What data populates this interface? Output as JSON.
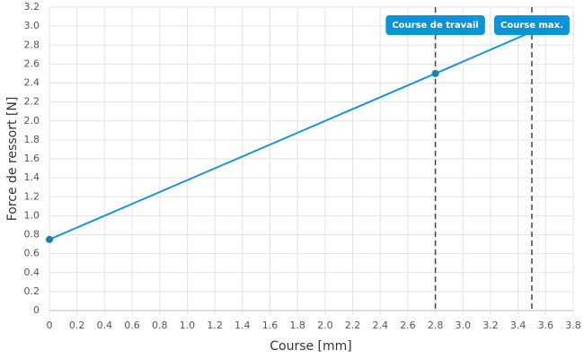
{
  "chart_data": {
    "type": "line",
    "x_label": "Course [mm]",
    "y_label": "Force de ressort [N]",
    "x": [
      0,
      2.8,
      3.5
    ],
    "series": [
      {
        "name": "Force de ressort",
        "color": "#1a95d3",
        "marker_color": "#1a7fb8",
        "markers": [
          true,
          true,
          false
        ],
        "values": [
          0.75,
          2.5,
          2.94
        ]
      }
    ],
    "xlim": [
      0,
      3.8
    ],
    "xticks": [
      0,
      0.2,
      0.4,
      0.6,
      0.8,
      {
        "value": 1,
        "label": "1.0"
      },
      1.2,
      1.4,
      1.6,
      1.8,
      {
        "value": 2,
        "label": "2.0"
      },
      2.2,
      2.4,
      2.6,
      2.8,
      {
        "value": 3,
        "label": "3.0"
      },
      3.2,
      3.4,
      3.6,
      3.8
    ],
    "ylim": [
      0,
      3.2
    ],
    "yticks": [
      0,
      0.2,
      0.4,
      0.6,
      0.8,
      {
        "value": 1,
        "label": "1.0"
      },
      1.2,
      1.4,
      1.6,
      1.8,
      {
        "value": 2,
        "label": "2.0"
      },
      2.2,
      2.4,
      2.6,
      2.8,
      {
        "value": 3,
        "label": "3.0"
      },
      3.2
    ],
    "grid": true,
    "annotations": [
      {
        "x": 2.8,
        "label": "Course de travail",
        "color": "#0a95d8"
      },
      {
        "x": 3.5,
        "label": "Course max.",
        "color": "#0a95d8"
      }
    ]
  }
}
